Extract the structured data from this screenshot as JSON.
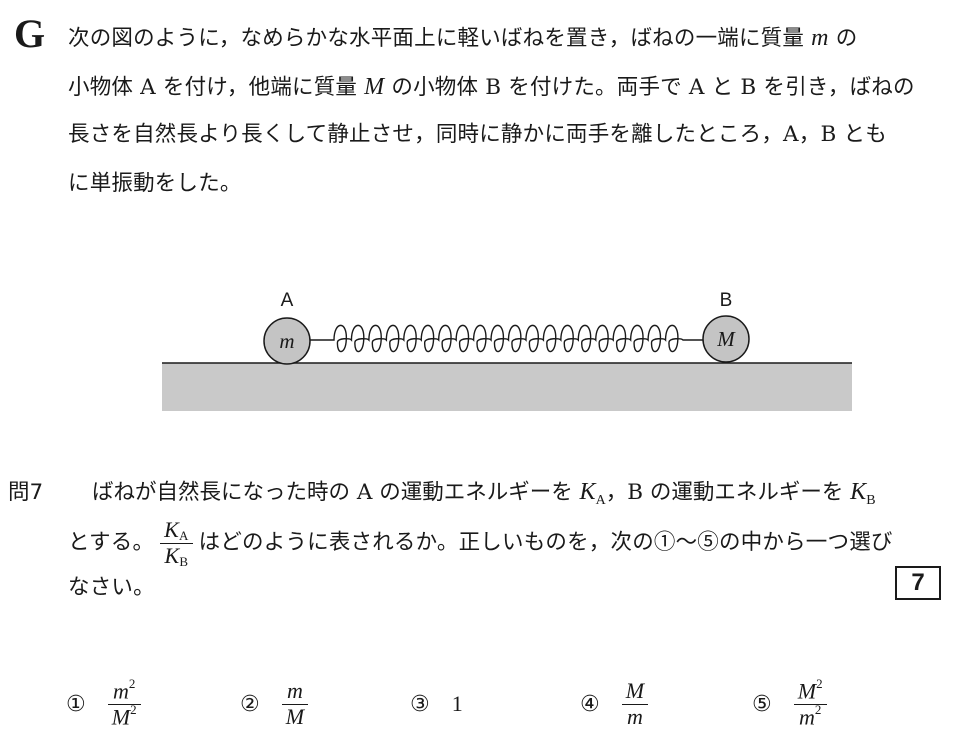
{
  "section": {
    "letter": "G"
  },
  "intro": {
    "line1_a": "次の図のように，なめらかな水平面上に軽いばねを置き，ばねの一端に質量 ",
    "line1_var": "m",
    "line1_b": " の",
    "line2_a": "小物体 A を付け，他端に質量 ",
    "line2_var": "M",
    "line2_b": " の小物体 B を付けた。両手で A と B を引き，ばねの",
    "line3": "長さを自然長より長くして静止させ，同時に静かに両手を離したところ，A，B とも",
    "line4": "に単振動をした。"
  },
  "figure": {
    "label_a": "A",
    "label_b": "B",
    "mass_a": "m",
    "mass_b": "M",
    "colors": {
      "floor": "#c9c9c9",
      "ball": "#c4c4c4",
      "ink": "#1a1a1a"
    }
  },
  "question": {
    "number": "問7",
    "line1_a": "ばねが自然長になった時の A の運動エネルギーを ",
    "ka_base": "K",
    "ka_sub": "A",
    "line1_b": "，B の運動エネルギーを ",
    "kb_base": "K",
    "kb_sub": "B",
    "line2_a": "とする。",
    "frac_num_base": "K",
    "frac_num_sub": "A",
    "frac_den_base": "K",
    "frac_den_sub": "B",
    "line2_b": " はどのように表されるか。正しいものを，次の①～⑤の中から一つ選び",
    "line3": "なさい。",
    "answer_box": "7"
  },
  "choices": [
    {
      "mark": "①",
      "num": "m",
      "num_pow": "2",
      "den": "M",
      "den_pow": "2"
    },
    {
      "mark": "②",
      "num": "m",
      "num_pow": "",
      "den": "M",
      "den_pow": ""
    },
    {
      "mark": "③",
      "value": "1"
    },
    {
      "mark": "④",
      "num": "M",
      "num_pow": "",
      "den": "m",
      "den_pow": ""
    },
    {
      "mark": "⑤",
      "num": "M",
      "num_pow": "2",
      "den": "m",
      "den_pow": "2"
    }
  ]
}
